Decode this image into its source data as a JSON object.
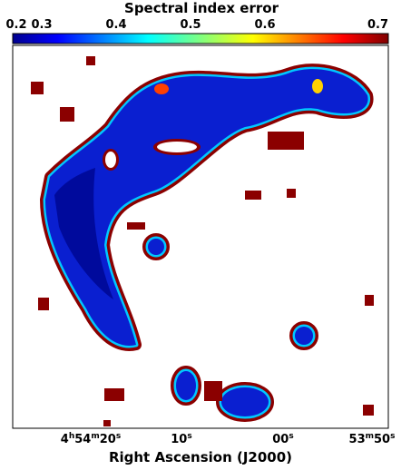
{
  "colorbar": {
    "title": "Spectral index error",
    "tick_labels": [
      "0.2",
      "0.3",
      "0.4",
      "0.5",
      "0.6",
      "0.7"
    ]
  },
  "x_axis": {
    "label": "Right Ascension (J2000)",
    "tick_labels": [
      "4h54m20s",
      "10s",
      "00s",
      "53m50s"
    ]
  }
}
